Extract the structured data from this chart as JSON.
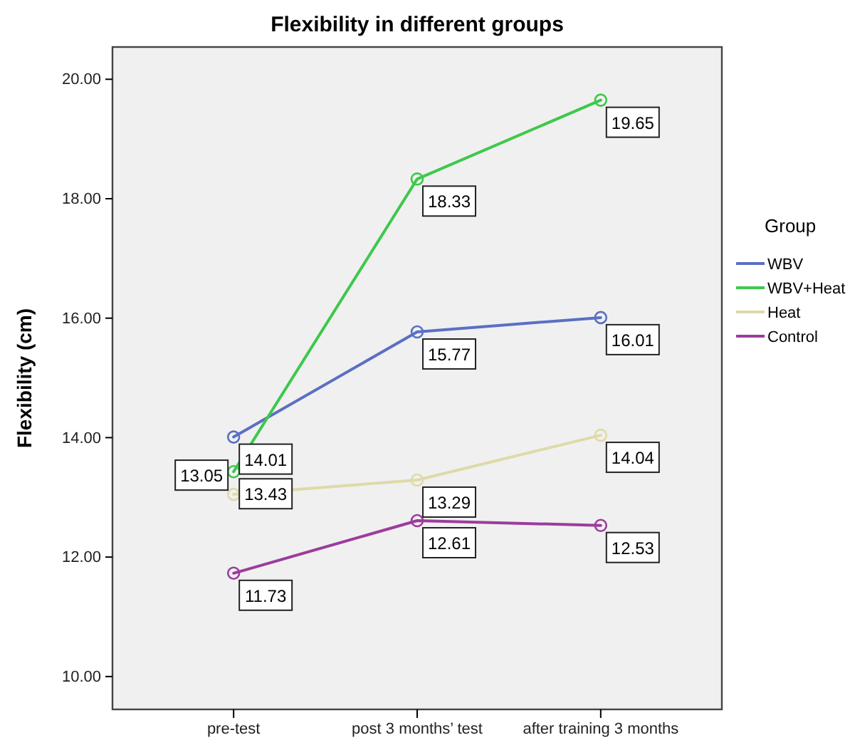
{
  "chart_data": {
    "type": "line",
    "title": "Flexibility in different groups",
    "ylabel": "Flexibility (cm)",
    "legend_title": "Group",
    "categories": [
      "pre-test",
      "post 3 months’ test",
      "after training 3 months"
    ],
    "series": [
      {
        "name": "WBV",
        "color": "#5b6fc4",
        "values": [
          14.01,
          15.77,
          16.01
        ]
      },
      {
        "name": "WBV+Heat",
        "color": "#3ec84c",
        "values": [
          13.43,
          18.33,
          19.65
        ]
      },
      {
        "name": "Heat",
        "color": "#dedaa8",
        "values": [
          13.05,
          13.29,
          14.04
        ]
      },
      {
        "name": "Control",
        "color": "#9c3c9c",
        "values": [
          11.73,
          12.61,
          12.53
        ]
      }
    ],
    "ylim": [
      9.45,
      20.54
    ],
    "yticks": [
      {
        "value": 10,
        "label": "10.00"
      },
      {
        "value": 12,
        "label": "12.00"
      },
      {
        "value": 14,
        "label": "14.00"
      },
      {
        "value": 16,
        "label": "16.00"
      },
      {
        "value": 18,
        "label": "18.00"
      },
      {
        "value": 20,
        "label": "20.00"
      }
    ],
    "grid": false,
    "legend": "right",
    "marker": "circle",
    "line_style": "solid",
    "data_labels": true
  }
}
